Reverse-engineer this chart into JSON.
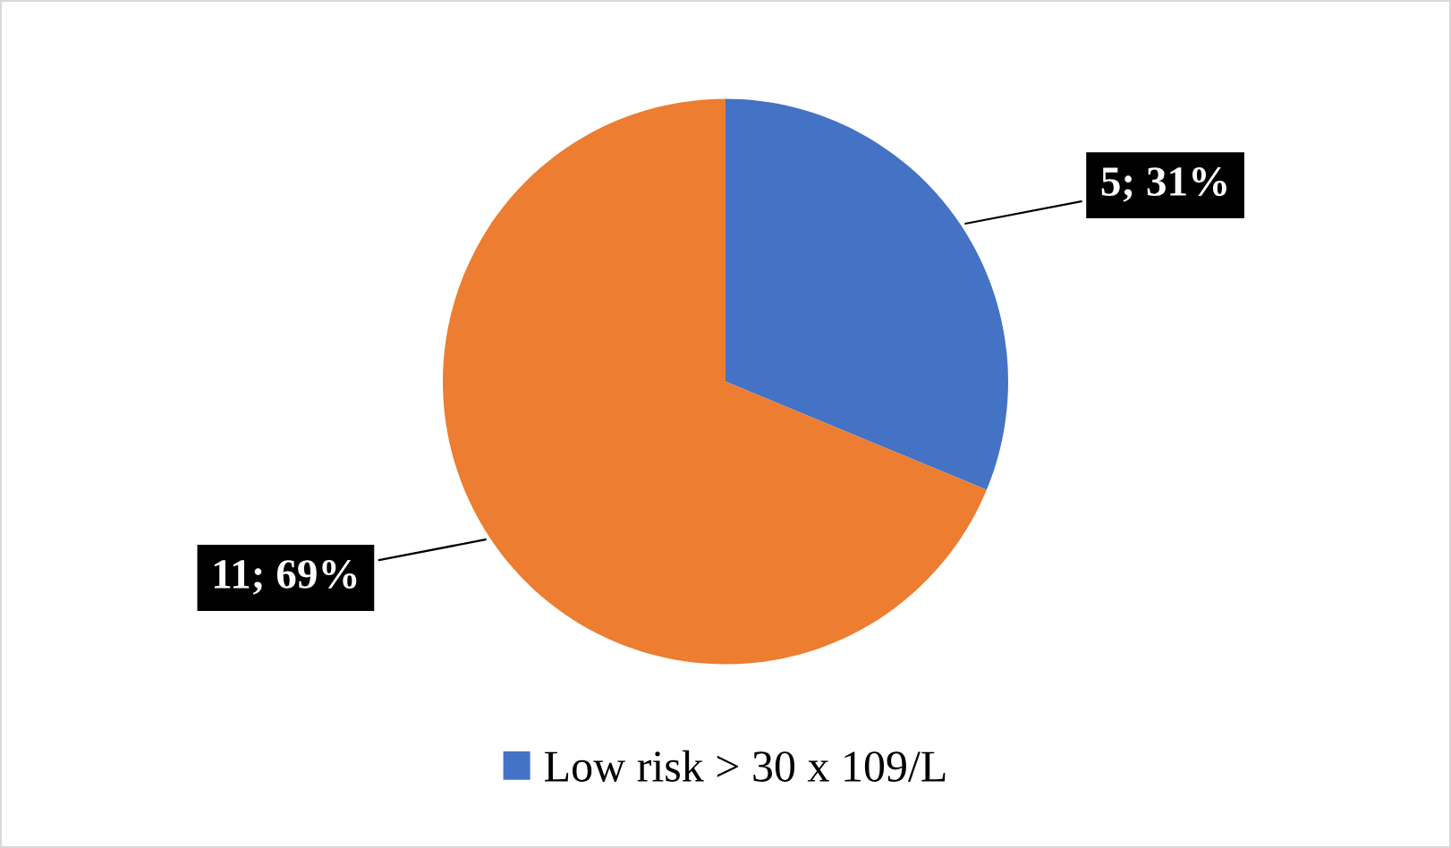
{
  "chart_data": {
    "type": "pie",
    "categories": [
      "Low risk > 30 x 109/L",
      null
    ],
    "values": [
      5,
      11
    ],
    "colors": [
      "#4472c4",
      "#ed7d31"
    ],
    "value_labels": [
      "5; 31%",
      "11; 69%"
    ],
    "legend": "bottom"
  }
}
